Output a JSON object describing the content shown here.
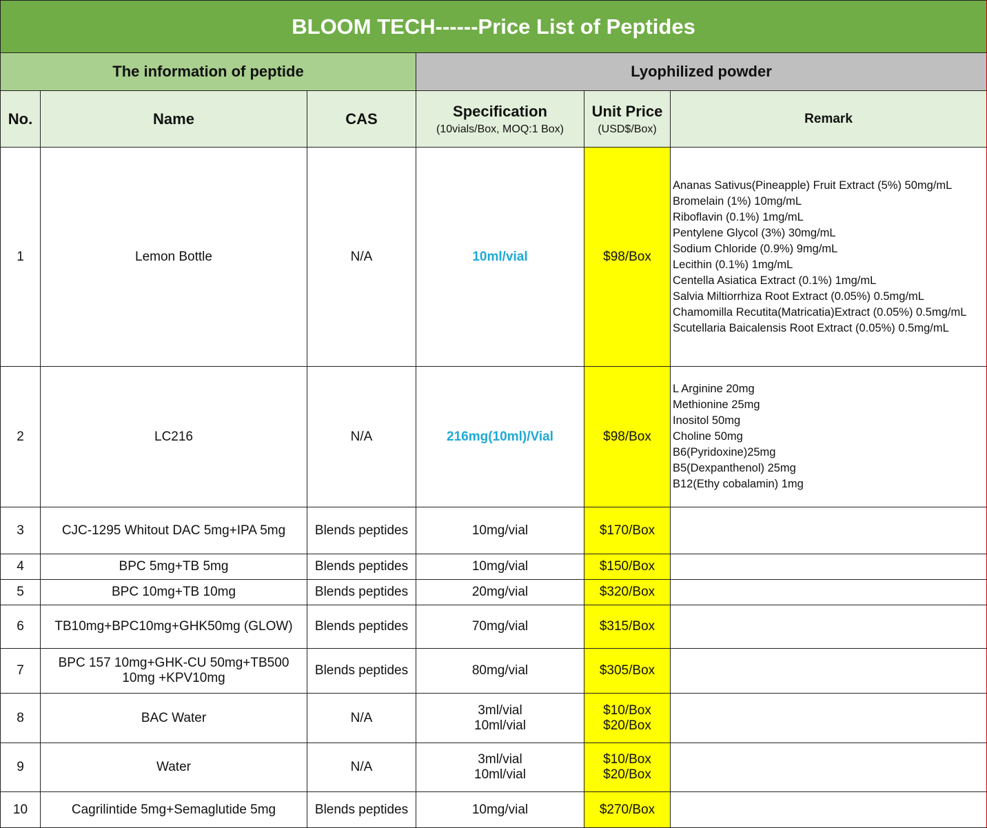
{
  "header": {
    "title": "BLOOM TECH------Price List of Peptides",
    "groups": [
      "The information of peptide",
      "Lyophilized powder"
    ]
  },
  "columns": [
    {
      "label": "No."
    },
    {
      "label": "Name"
    },
    {
      "label": "CAS"
    },
    {
      "label": "Specification",
      "sublabel": "(10vials/Box, MOQ:1 Box)"
    },
    {
      "label": "Unit Price",
      "sublabel": "(USD$/Box)"
    },
    {
      "label": "Remark"
    }
  ],
  "rows": [
    {
      "no": "1",
      "name": "Lemon  Bottle",
      "cas": "N/A",
      "specification": [
        "10ml/vial"
      ],
      "spec_color": "#1fa9d6",
      "price": [
        "$98/Box"
      ],
      "remark": [
        "Ananas Sativus(Pineapple) Fruit Extract (5%) 50mg/mL",
        "Bromelain (1%) 10mg/mL",
        "Riboflavin (0.1%) 1mg/mL",
        "Pentylene Glycol (3%) 30mg/mL",
        "Sodium Chloride (0.9%) 9mg/mL",
        "Lecithin (0.1%) 1mg/mL",
        "Centella Asiatica Extract (0.1%) 1mg/mL",
        "Salvia Miltiorrhiza Root Extract (0.05%) 0.5mg/mL",
        "Chamomilla Recutita(Matricatia)Extract (0.05%) 0.5mg/mL",
        "Scutellaria Baicalensis Root Extract (0.05%) 0.5mg/mL"
      ]
    },
    {
      "no": "2",
      "name": "LC216",
      "cas": "N/A",
      "specification": [
        "216mg(10ml)/Vial"
      ],
      "spec_color": "#1fa9d6",
      "price": [
        "$98/Box"
      ],
      "remark": [
        "L Arginine  20mg",
        "Methionine 25mg",
        "Inositol 50mg",
        "Choline 50mg",
        "B6(Pyridoxine)25mg",
        "B5(Dexpanthenol) 25mg",
        "B12(Ethy cobalamin) 1mg"
      ]
    },
    {
      "no": "3",
      "name": "CJC-1295 Whitout DAC 5mg+IPA 5mg",
      "cas": "Blends peptides",
      "specification": [
        "10mg/vial"
      ],
      "price": [
        "$170/Box"
      ],
      "remark": []
    },
    {
      "no": "4",
      "name": "BPC 5mg+TB 5mg",
      "cas": "Blends peptides",
      "specification": [
        "10mg/vial"
      ],
      "price": [
        "$150/Box"
      ],
      "remark": []
    },
    {
      "no": "5",
      "name": "BPC 10mg+TB 10mg",
      "cas": "Blends peptides",
      "specification": [
        "20mg/vial"
      ],
      "price": [
        "$320/Box"
      ],
      "remark": []
    },
    {
      "no": "6",
      "name": "TB10mg+BPC10mg+GHK50mg (GLOW)",
      "cas": "Blends peptides",
      "specification": [
        "70mg/vial"
      ],
      "price": [
        "$315/Box"
      ],
      "remark": []
    },
    {
      "no": "7",
      "name": "BPC 157 10mg+GHK-CU 50mg+TB500 10mg +KPV10mg",
      "cas": "Blends peptides",
      "specification": [
        "80mg/vial"
      ],
      "price": [
        "$305/Box"
      ],
      "remark": []
    },
    {
      "no": "8",
      "name": "BAC Water",
      "cas": "N/A",
      "specification": [
        "3ml/vial",
        "10ml/vial"
      ],
      "price": [
        "$10/Box",
        "$20/Box"
      ],
      "remark": []
    },
    {
      "no": "9",
      "name": "Water",
      "cas": "N/A",
      "specification": [
        "3ml/vial",
        "10ml/vial"
      ],
      "price": [
        "$10/Box",
        "$20/Box"
      ],
      "remark": []
    },
    {
      "no": "10",
      "name": "Cagrilintide 5mg+Semaglutide 5mg",
      "cas": "Blends peptides",
      "specification": [
        "10mg/vial"
      ],
      "price": [
        "$270/Box"
      ],
      "remark": []
    }
  ]
}
